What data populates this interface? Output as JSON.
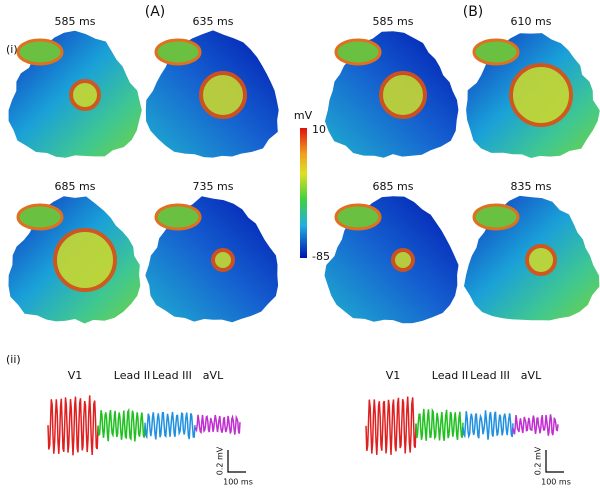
{
  "rows": [
    "(i)",
    "(ii)"
  ],
  "panels": [
    {
      "label": "(A)",
      "frames": [
        "585 ms",
        "635 ms",
        "685 ms",
        "735 ms"
      ],
      "leads": [
        "V1",
        "Lead II",
        "Lead III",
        "aVL"
      ],
      "scale": {
        "voltage": "0.2 mV",
        "time": "100 ms"
      }
    },
    {
      "label": "(B)",
      "frames": [
        "585 ms",
        "610 ms",
        "685 ms",
        "835 ms"
      ],
      "leads": [
        "V1",
        "Lead II",
        "Lead III",
        "aVL"
      ],
      "scale": {
        "voltage": "0.2 mV",
        "time": "100 ms"
      }
    }
  ],
  "colorbar": {
    "unit": "mV",
    "max": "10",
    "min": "-85"
  }
}
